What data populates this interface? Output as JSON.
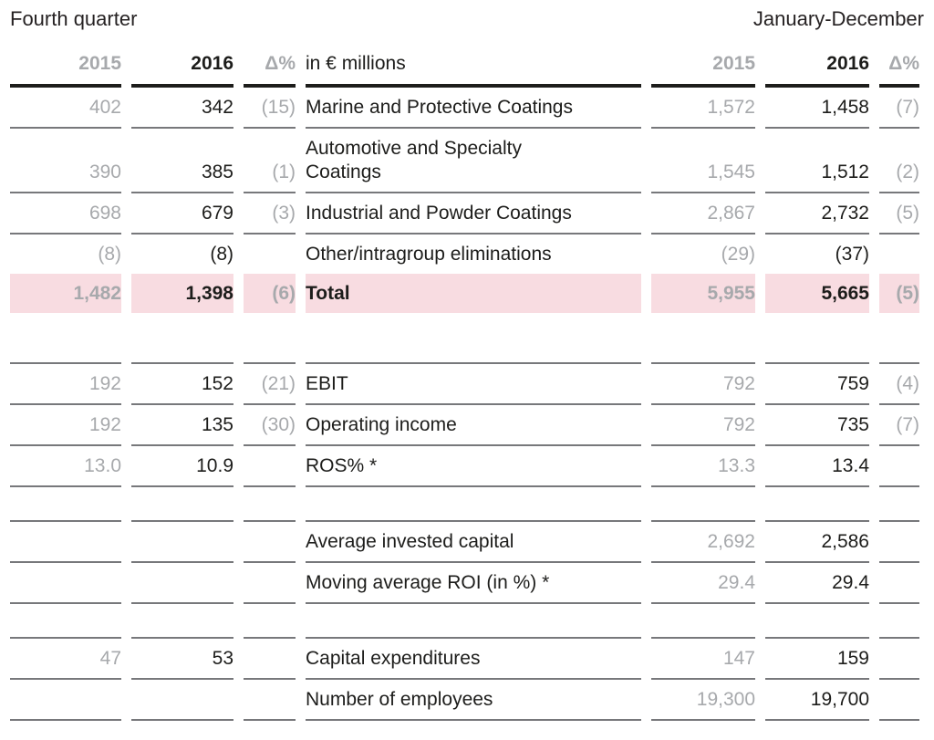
{
  "page": {
    "left_period": "Fourth quarter",
    "right_period": "January-December"
  },
  "table": {
    "columns": [
      "2015",
      "2016",
      "Δ%",
      "in € millions",
      "2015",
      "2016",
      "Δ%"
    ],
    "rows": [
      {
        "type": "data",
        "label": "Marine and Protective Coatings",
        "fq": [
          "402",
          "342",
          "(15)"
        ],
        "jd": [
          "1,572",
          "1,458",
          "(7)"
        ]
      },
      {
        "type": "data",
        "label": "Automotive and Specialty\nCoatings",
        "fq": [
          "390",
          "385",
          "(1)"
        ],
        "jd": [
          "1,545",
          "1,512",
          "(2)"
        ]
      },
      {
        "type": "data",
        "label": "Industrial and Powder Coatings",
        "fq": [
          "698",
          "679",
          "(3)"
        ],
        "jd": [
          "2,867",
          "2,732",
          "(5)"
        ]
      },
      {
        "type": "noline",
        "label": "Other/intragroup eliminations",
        "fq": [
          "(8)",
          "(8)",
          ""
        ],
        "jd": [
          "(29)",
          "(37)",
          ""
        ]
      },
      {
        "type": "total",
        "label": "Total",
        "fq": [
          "1,482",
          "1,398",
          "(6)"
        ],
        "jd": [
          "5,955",
          "5,665",
          "(5)"
        ]
      },
      {
        "type": "spacer_tall",
        "label": "",
        "fq": [
          "",
          "",
          ""
        ],
        "jd": [
          "",
          "",
          ""
        ]
      },
      {
        "type": "data",
        "label": "EBIT",
        "fq": [
          "192",
          "152",
          "(21)"
        ],
        "jd": [
          "792",
          "759",
          "(4)"
        ]
      },
      {
        "type": "data",
        "label": "Operating income",
        "fq": [
          "192",
          "135",
          "(30)"
        ],
        "jd": [
          "792",
          "735",
          "(7)"
        ]
      },
      {
        "type": "data",
        "label": "ROS% *",
        "fq": [
          "13.0",
          "10.9",
          ""
        ],
        "jd": [
          "13.3",
          "13.4",
          ""
        ]
      },
      {
        "type": "spacer_small",
        "label": "",
        "fq": [
          "",
          "",
          ""
        ],
        "jd": [
          "",
          "",
          ""
        ]
      },
      {
        "type": "data",
        "label": "Average invested capital",
        "fq": [
          "",
          "",
          ""
        ],
        "jd": [
          "2,692",
          "2,586",
          ""
        ]
      },
      {
        "type": "data",
        "label": "Moving average ROI (in %) *",
        "fq": [
          "",
          "",
          ""
        ],
        "jd": [
          "29.4",
          "29.4",
          ""
        ]
      },
      {
        "type": "spacer_small",
        "label": "",
        "fq": [
          "",
          "",
          ""
        ],
        "jd": [
          "",
          "",
          ""
        ]
      },
      {
        "type": "data",
        "label": "Capital expenditures",
        "fq": [
          "47",
          "53",
          ""
        ],
        "jd": [
          "147",
          "159",
          ""
        ]
      },
      {
        "type": "data",
        "label": "Number of employees",
        "fq": [
          "",
          "",
          ""
        ],
        "jd": [
          "19,300",
          "19,700",
          ""
        ]
      }
    ]
  },
  "colors": {
    "highlight_pink": "#f8dce1",
    "muted_gray": "#a7a9ac",
    "text_black": "#1d1d1b",
    "rule_gray": "#77787b"
  }
}
